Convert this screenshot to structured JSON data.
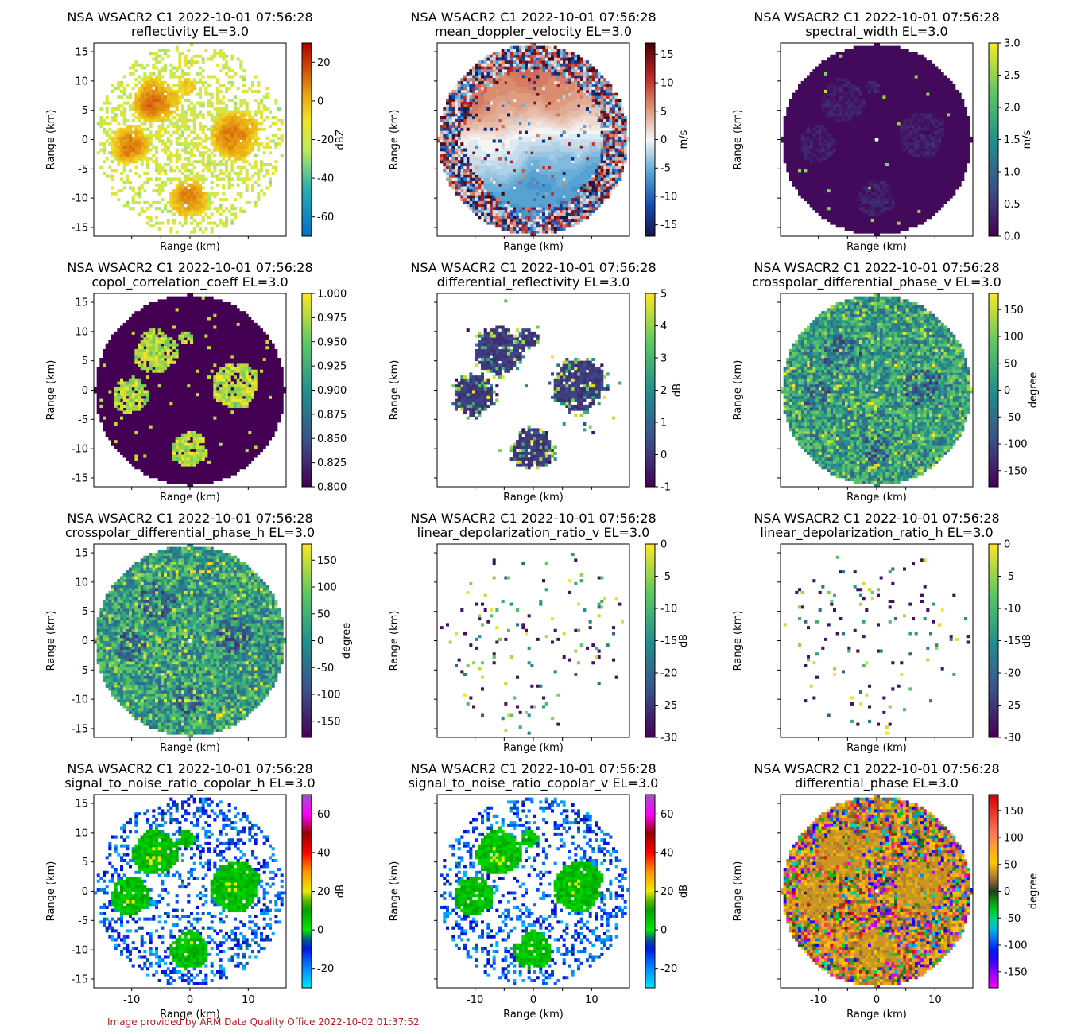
{
  "footer": "Image provided by ARM Data Quality Office 2022-10-02 01:37:52",
  "chart_data": [
    {
      "type": "heatmap",
      "title": "NSA WSACR2 C1 2022-10-01 07:56:28",
      "subtitle": "reflectivity  EL=3.0",
      "xlabel": "Range (km)",
      "ylabel": "Range (km)",
      "xlim": [
        -16.5,
        16.5
      ],
      "ylim": [
        -16.5,
        16.5
      ],
      "xticks": [],
      "yticks": [
        15,
        10,
        5,
        0,
        -5,
        -10,
        -15
      ],
      "cbar_label": "dBZ",
      "cbar_ticks": [
        20,
        0,
        -20,
        -40,
        -60
      ],
      "cbar_range": [
        -70,
        30
      ],
      "colormap": "reflectivity",
      "pattern": "weather",
      "speckle": "dense"
    },
    {
      "type": "heatmap",
      "title": "NSA WSACR2 C1 2022-10-01 07:56:28",
      "subtitle": "mean_doppler_velocity  EL=3.0",
      "xlabel": "Range (km)",
      "ylabel": "Range (km)",
      "xlim": [
        -16.5,
        16.5
      ],
      "ylim": [
        -16.5,
        16.5
      ],
      "xticks": [],
      "yticks": [],
      "cbar_label": "m/s",
      "cbar_ticks": [
        15,
        10,
        5,
        0,
        -5,
        -10,
        -15
      ],
      "cbar_range": [
        -17,
        17
      ],
      "colormap": "velocity",
      "pattern": "doppler",
      "speckle": "full"
    },
    {
      "type": "heatmap",
      "title": "NSA WSACR2 C1 2022-10-01 07:56:28",
      "subtitle": "spectral_width  EL=3.0",
      "xlabel": "Range (km)",
      "ylabel": "Range (km)",
      "xlim": [
        -16.5,
        16.5
      ],
      "ylim": [
        -16.5,
        16.5
      ],
      "xticks": [],
      "yticks": [],
      "cbar_label": "m/s",
      "cbar_ticks": [
        3.0,
        2.5,
        2.0,
        1.5,
        1.0,
        0.5,
        0.0
      ],
      "cbar_range": [
        0,
        3
      ],
      "colormap": "viridis",
      "pattern": "low",
      "speckle": "full"
    },
    {
      "type": "heatmap",
      "title": "NSA WSACR2 C1 2022-10-01 07:56:28",
      "subtitle": "copol_correlation_coeff  EL=3.0",
      "xlabel": "Range (km)",
      "ylabel": "Range (km)",
      "xlim": [
        -16.5,
        16.5
      ],
      "ylim": [
        -16.5,
        16.5
      ],
      "xticks": [],
      "yticks": [
        15,
        10,
        5,
        0,
        -5,
        -10,
        -15
      ],
      "cbar_label": "",
      "cbar_ticks": [
        1.0,
        0.975,
        0.95,
        0.925,
        0.9,
        0.875,
        0.85,
        0.825,
        0.8
      ],
      "cbar_range": [
        0.8,
        1.0
      ],
      "colormap": "viridis",
      "pattern": "rhohv",
      "speckle": "full"
    },
    {
      "type": "heatmap",
      "title": "NSA WSACR2 C1 2022-10-01 07:56:28",
      "subtitle": "differential_reflectivity  EL=3.0",
      "xlabel": "Range (km)",
      "ylabel": "Range (km)",
      "xlim": [
        -16.5,
        16.5
      ],
      "ylim": [
        -16.5,
        16.5
      ],
      "xticks": [],
      "yticks": [],
      "cbar_label": "dB",
      "cbar_ticks": [
        5,
        4,
        3,
        2,
        1,
        0,
        -1
      ],
      "cbar_range": [
        -1,
        5
      ],
      "colormap": "viridis",
      "pattern": "zdr",
      "speckle": "cloud"
    },
    {
      "type": "heatmap",
      "title": "NSA WSACR2 C1 2022-10-01 07:56:28",
      "subtitle": "crosspolar_differential_phase_v  EL=3.0",
      "xlabel": "Range (km)",
      "ylabel": "Range (km)",
      "xlim": [
        -16.5,
        16.5
      ],
      "ylim": [
        -16.5,
        16.5
      ],
      "xticks": [],
      "yticks": [],
      "cbar_label": "degree",
      "cbar_ticks": [
        150,
        100,
        50,
        0,
        -50,
        -100,
        -150
      ],
      "cbar_range": [
        -180,
        180
      ],
      "colormap": "viridis",
      "pattern": "noise",
      "speckle": "full"
    },
    {
      "type": "heatmap",
      "title": "NSA WSACR2 C1 2022-10-01 07:56:28",
      "subtitle": "crosspolar_differential_phase_h  EL=3.0",
      "xlabel": "Range (km)",
      "ylabel": "Range (km)",
      "xlim": [
        -16.5,
        16.5
      ],
      "ylim": [
        -16.5,
        16.5
      ],
      "xticks": [],
      "yticks": [
        15,
        10,
        5,
        0,
        -5,
        -10,
        -15
      ],
      "cbar_label": "degree",
      "cbar_ticks": [
        150,
        100,
        50,
        0,
        -50,
        -100,
        -150
      ],
      "cbar_range": [
        -180,
        180
      ],
      "colormap": "viridis",
      "pattern": "noise",
      "speckle": "full"
    },
    {
      "type": "heatmap",
      "title": "NSA WSACR2 C1 2022-10-01 07:56:28",
      "subtitle": "linear_depolarization_ratio_v  EL=3.0",
      "xlabel": "Range (km)",
      "ylabel": "Range (km)",
      "xlim": [
        -16.5,
        16.5
      ],
      "ylim": [
        -16.5,
        16.5
      ],
      "xticks": [],
      "yticks": [],
      "cbar_label": "dB",
      "cbar_ticks": [
        0,
        -5,
        -10,
        -15,
        -20,
        -25,
        -30
      ],
      "cbar_range": [
        -30,
        0
      ],
      "colormap": "viridis",
      "pattern": "ldr",
      "speckle": "sparse"
    },
    {
      "type": "heatmap",
      "title": "NSA WSACR2 C1 2022-10-01 07:56:28",
      "subtitle": "linear_depolarization_ratio_h  EL=3.0",
      "xlabel": "Range (km)",
      "ylabel": "Range (km)",
      "xlim": [
        -16.5,
        16.5
      ],
      "ylim": [
        -16.5,
        16.5
      ],
      "xticks": [],
      "yticks": [],
      "cbar_label": "dB",
      "cbar_ticks": [
        0,
        -5,
        -10,
        -15,
        -20,
        -25,
        -30
      ],
      "cbar_range": [
        -30,
        0
      ],
      "colormap": "viridis",
      "pattern": "ldr",
      "speckle": "sparse"
    },
    {
      "type": "heatmap",
      "title": "NSA WSACR2 C1 2022-10-01 07:56:28",
      "subtitle": "signal_to_noise_ratio_copolar_h  EL=3.0",
      "xlabel": "Range (km)",
      "ylabel": "Range (km)",
      "xlim": [
        -16.5,
        16.5
      ],
      "ylim": [
        -16.5,
        16.5
      ],
      "xticks": [
        -10,
        0,
        10
      ],
      "yticks": [
        15,
        10,
        5,
        0,
        -5,
        -10,
        -15
      ],
      "cbar_label": "dB",
      "cbar_ticks": [
        60,
        40,
        20,
        0,
        -20
      ],
      "cbar_range": [
        -30,
        70
      ],
      "colormap": "snr",
      "pattern": "snr",
      "speckle": "dense"
    },
    {
      "type": "heatmap",
      "title": "NSA WSACR2 C1 2022-10-01 07:56:28",
      "subtitle": "signal_to_noise_ratio_copolar_v  EL=3.0",
      "xlabel": "Range (km)",
      "ylabel": "Range (km)",
      "xlim": [
        -16.5,
        16.5
      ],
      "ylim": [
        -16.5,
        16.5
      ],
      "xticks": [
        -10,
        0,
        10
      ],
      "yticks": [],
      "cbar_label": "dB",
      "cbar_ticks": [
        60,
        40,
        20,
        0,
        -20
      ],
      "cbar_range": [
        -30,
        70
      ],
      "colormap": "snr",
      "pattern": "snr",
      "speckle": "medium"
    },
    {
      "type": "heatmap",
      "title": "NSA WSACR2 C1 2022-10-01 07:56:28",
      "subtitle": "differential_phase  EL=3.0",
      "xlabel": "Range (km)",
      "ylabel": "Range (km)",
      "xlim": [
        -16.5,
        16.5
      ],
      "ylim": [
        -16.5,
        16.5
      ],
      "xticks": [
        -10,
        0,
        10
      ],
      "yticks": [],
      "cbar_label": "degree",
      "cbar_ticks": [
        150,
        100,
        50,
        0,
        -50,
        -100,
        -150
      ],
      "cbar_range": [
        -180,
        180
      ],
      "colormap": "phase",
      "pattern": "phidp",
      "speckle": "full"
    }
  ]
}
